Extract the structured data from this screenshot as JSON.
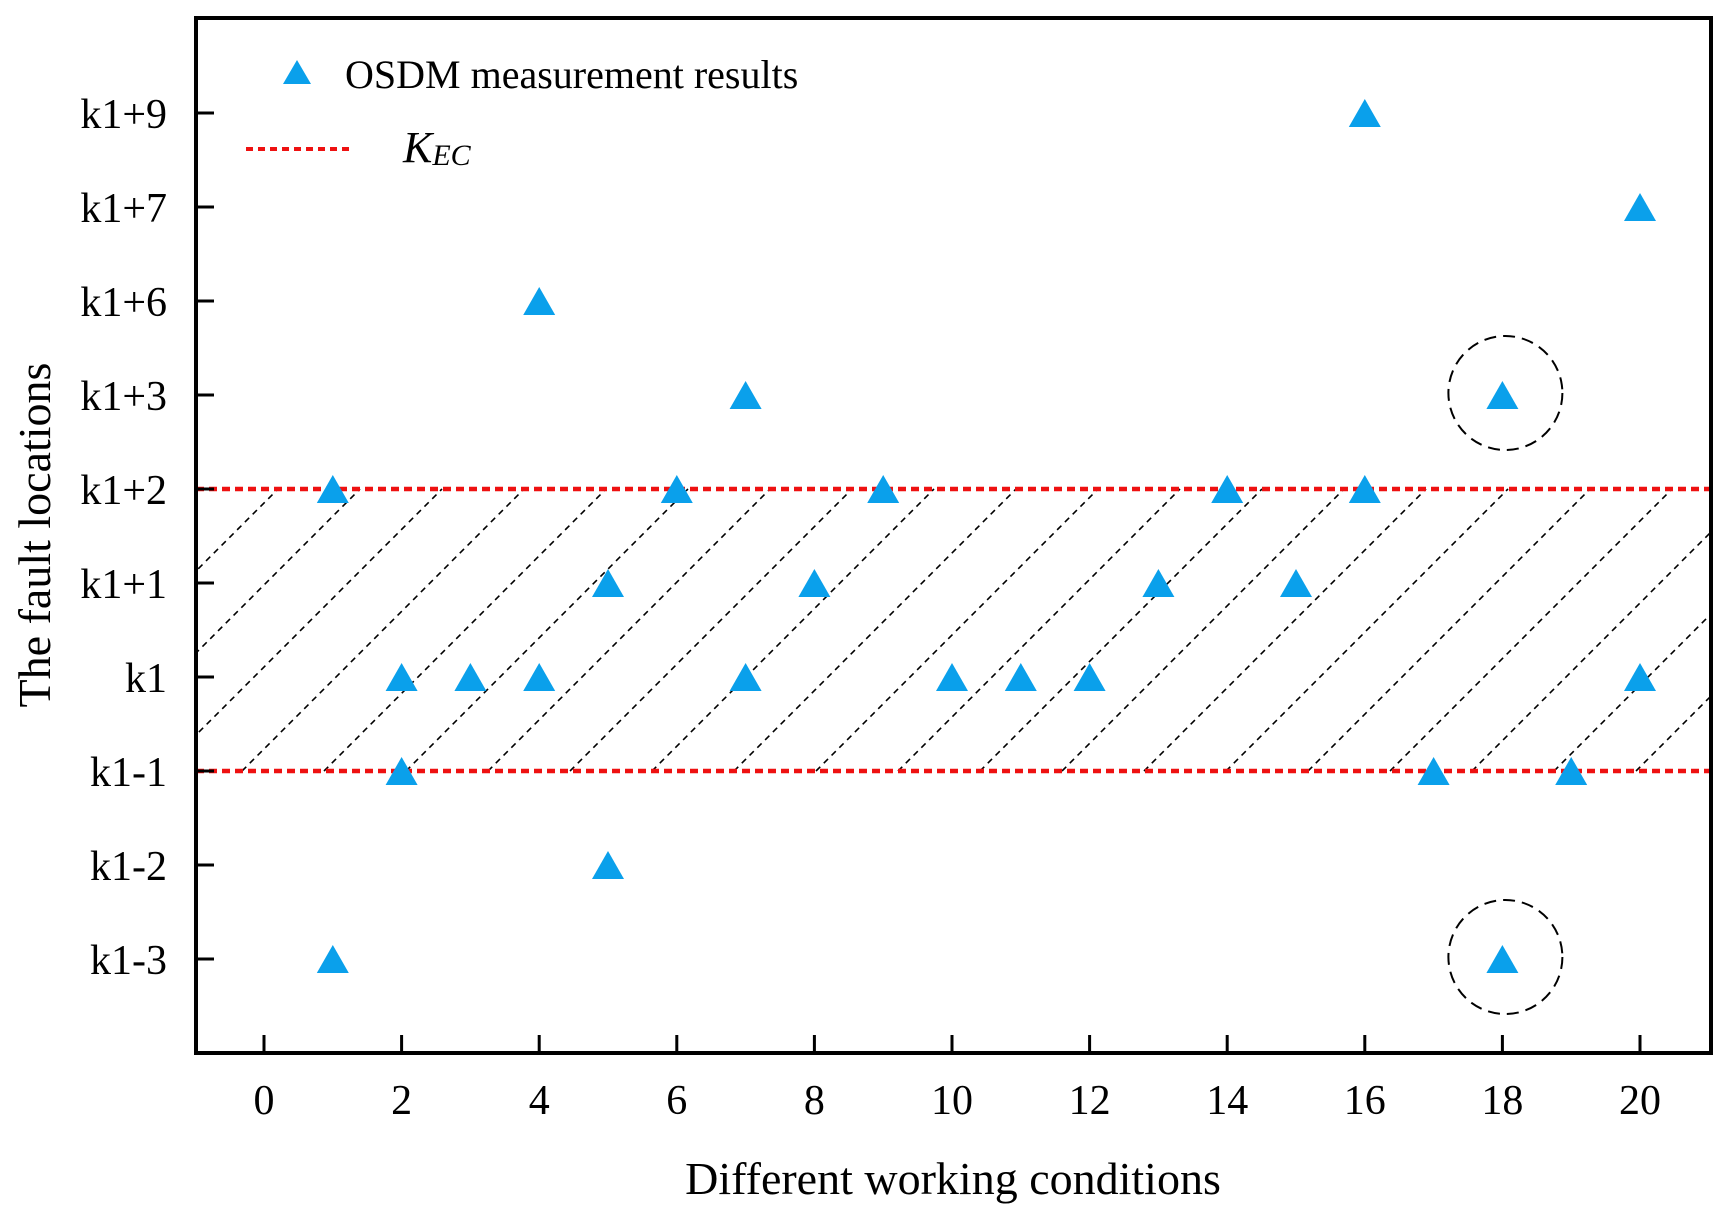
{
  "chart_data": {
    "type": "scatter",
    "title": "",
    "xlabel": "Different working conditions",
    "ylabel": "The fault locations",
    "xlim": [
      -1,
      21
    ],
    "xticks": [
      0,
      2,
      4,
      6,
      8,
      10,
      12,
      14,
      16,
      18,
      20
    ],
    "y_categories": [
      "k1-3",
      "k1-2",
      "k1-1",
      "k1",
      "k1+1",
      "k1+2",
      "k1+3",
      "k1+6",
      "k1+7",
      "k1+9"
    ],
    "series": [
      {
        "name": "OSDM measurement results",
        "marker": "triangle",
        "color": "#0aa0eb",
        "points": [
          {
            "x": 1,
            "y": "k1+2"
          },
          {
            "x": 1,
            "y": "k1-3"
          },
          {
            "x": 2,
            "y": "k1"
          },
          {
            "x": 2,
            "y": "k1-1"
          },
          {
            "x": 3,
            "y": "k1"
          },
          {
            "x": 4,
            "y": "k1+6"
          },
          {
            "x": 4,
            "y": "k1"
          },
          {
            "x": 5,
            "y": "k1+1"
          },
          {
            "x": 5,
            "y": "k1-2"
          },
          {
            "x": 6,
            "y": "k1+2"
          },
          {
            "x": 7,
            "y": "k1+3"
          },
          {
            "x": 7,
            "y": "k1"
          },
          {
            "x": 8,
            "y": "k1+1"
          },
          {
            "x": 9,
            "y": "k1+2"
          },
          {
            "x": 10,
            "y": "k1"
          },
          {
            "x": 11,
            "y": "k1"
          },
          {
            "x": 12,
            "y": "k1"
          },
          {
            "x": 13,
            "y": "k1+1"
          },
          {
            "x": 14,
            "y": "k1+2"
          },
          {
            "x": 15,
            "y": "k1+1"
          },
          {
            "x": 16,
            "y": "k1+9"
          },
          {
            "x": 16,
            "y": "k1+2"
          },
          {
            "x": 17,
            "y": "k1-1"
          },
          {
            "x": 18,
            "y": "k1+3"
          },
          {
            "x": 18,
            "y": "k1-3"
          },
          {
            "x": 19,
            "y": "k1-1"
          },
          {
            "x": 20,
            "y": "k1+7"
          },
          {
            "x": 20,
            "y": "k1"
          }
        ]
      }
    ],
    "reference_lines": [
      {
        "name": "K_EC upper",
        "y": "k1+2",
        "color": "#ee1111"
      },
      {
        "name": "K_EC lower",
        "y": "k1-1",
        "color": "#ee1111"
      }
    ],
    "legend": {
      "position": "top-left",
      "entries": [
        {
          "label": "OSDM measurement results",
          "marker": "triangle"
        },
        {
          "label_main": "K",
          "label_sub": "EC",
          "marker": "dashed-line"
        }
      ]
    },
    "highlight_circles": [
      {
        "x": 18,
        "y": "k1+3"
      },
      {
        "x": 18,
        "y": "k1-3"
      }
    ],
    "shaded_band": {
      "from": "k1-1",
      "to": "k1+2",
      "pattern": "diagonal-hatch"
    }
  }
}
